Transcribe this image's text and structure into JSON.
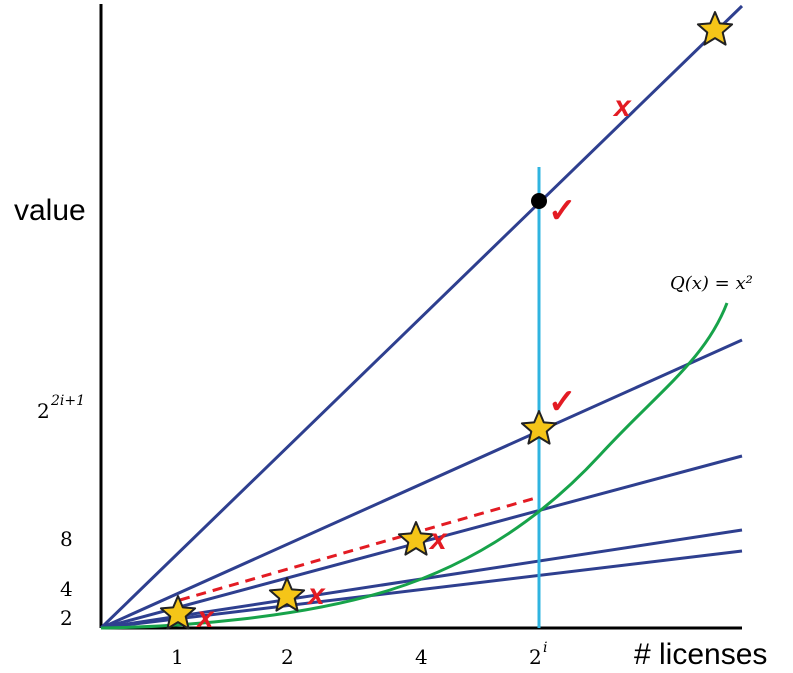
{
  "labels": {
    "y_axis": "value",
    "x_axis": "# licenses",
    "y_ticks": {
      "two": "2",
      "four": "4",
      "eight": "8",
      "exp_base": "2",
      "exp_sup": "2i+1"
    },
    "x_ticks": {
      "one": "1",
      "two": "2",
      "four": "4",
      "exp_base": "2",
      "exp_sup": "i"
    },
    "curve": "Q(x) = x²"
  },
  "marks": {
    "check": "✓",
    "cross": "x"
  },
  "colors": {
    "axis": "#000000",
    "ray": "#2e3f8f",
    "curve": "#17a34a",
    "vertical": "#2fb4e0",
    "dashed": "#e31b23",
    "star_fill": "#f5c518",
    "star_stroke": "#222222",
    "check": "#e31b23",
    "cross": "#e31b23",
    "dot": "#000000"
  }
}
